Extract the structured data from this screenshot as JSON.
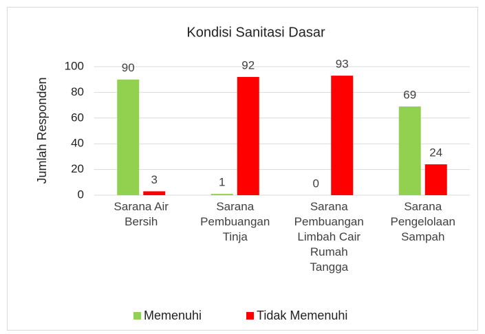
{
  "chart_data": {
    "type": "bar",
    "title": "Kondisi Sanitasi Dasar",
    "ylabel": "Jumlah Responden",
    "categories": [
      "Sarana Air Bersih",
      "Sarana Pembuangan Tinja",
      "Sarana Pembuangan Limbah Cair Rumah Tangga",
      "Sarana Pengelolaan Sampah"
    ],
    "series": [
      {
        "name": "Memenuhi",
        "color": "#92d050",
        "values": [
          90,
          1,
          0,
          69
        ]
      },
      {
        "name": "Tidak Memenuhi",
        "color": "#ff0000",
        "values": [
          3,
          92,
          93,
          24
        ]
      }
    ],
    "ylim": [
      0,
      100
    ],
    "yticks": [
      0,
      20,
      40,
      60,
      80,
      100
    ],
    "grid": true,
    "legend": "bottom"
  }
}
